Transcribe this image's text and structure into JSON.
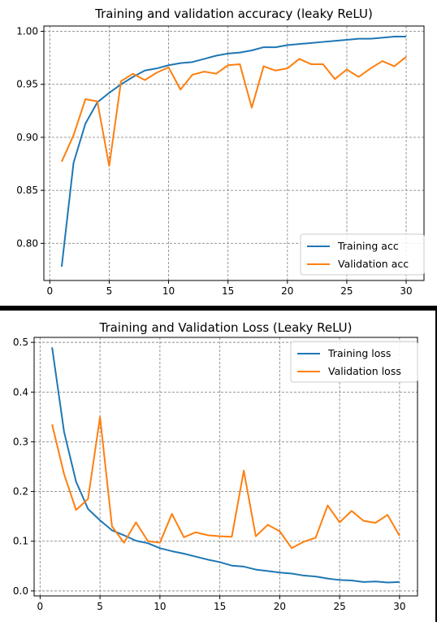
{
  "chart_data": [
    {
      "type": "line",
      "title": "Training and validation accuracy (leaky ReLU)",
      "xlabel": "",
      "ylabel": "",
      "xlim": [
        -0.5,
        31.5
      ],
      "ylim": [
        0.765,
        1.005
      ],
      "x_ticks": [
        0,
        5,
        10,
        15,
        20,
        25,
        30
      ],
      "y_ticks": [
        0.8,
        0.85,
        0.9,
        0.95,
        1.0
      ],
      "y_tick_labels": [
        "0.80",
        "0.85",
        "0.90",
        "0.95",
        "1.00"
      ],
      "grid": true,
      "legend_location": "lower right",
      "x": [
        1,
        2,
        3,
        4,
        5,
        6,
        7,
        8,
        9,
        10,
        11,
        12,
        13,
        14,
        15,
        16,
        17,
        18,
        19,
        20,
        21,
        22,
        23,
        24,
        25,
        26,
        27,
        28,
        29,
        30
      ],
      "series": [
        {
          "name": "Training acc",
          "color": "#1f77b4",
          "values": [
            0.778,
            0.876,
            0.913,
            0.933,
            0.942,
            0.95,
            0.957,
            0.963,
            0.965,
            0.968,
            0.97,
            0.971,
            0.974,
            0.977,
            0.979,
            0.98,
            0.982,
            0.985,
            0.985,
            0.987,
            0.988,
            0.989,
            0.99,
            0.991,
            0.992,
            0.993,
            0.993,
            0.994,
            0.995,
            0.995
          ]
        },
        {
          "name": "Validation acc",
          "color": "#ff7f0e",
          "values": [
            0.877,
            0.902,
            0.936,
            0.934,
            0.873,
            0.953,
            0.96,
            0.954,
            0.961,
            0.966,
            0.945,
            0.959,
            0.962,
            0.96,
            0.968,
            0.969,
            0.928,
            0.967,
            0.963,
            0.965,
            0.974,
            0.969,
            0.969,
            0.955,
            0.964,
            0.957,
            0.965,
            0.972,
            0.967,
            0.976
          ]
        }
      ]
    },
    {
      "type": "line",
      "title": "Training and Validation Loss (Leaky ReLU)",
      "xlabel": "",
      "ylabel": "",
      "xlim": [
        -0.5,
        31.5
      ],
      "ylim": [
        -0.01,
        0.51
      ],
      "x_ticks": [
        0,
        5,
        10,
        15,
        20,
        25,
        30
      ],
      "y_ticks": [
        0.0,
        0.1,
        0.2,
        0.3,
        0.4,
        0.5
      ],
      "y_tick_labels": [
        "0.0",
        "0.1",
        "0.2",
        "0.3",
        "0.4",
        "0.5"
      ],
      "grid": true,
      "legend_location": "upper right",
      "x": [
        1,
        2,
        3,
        4,
        5,
        6,
        7,
        8,
        9,
        10,
        11,
        12,
        13,
        14,
        15,
        16,
        17,
        18,
        19,
        20,
        21,
        22,
        23,
        24,
        25,
        26,
        27,
        28,
        29,
        30
      ],
      "series": [
        {
          "name": "Training loss",
          "color": "#1f77b4",
          "values": [
            0.49,
            0.32,
            0.22,
            0.165,
            0.142,
            0.122,
            0.112,
            0.101,
            0.096,
            0.086,
            0.08,
            0.075,
            0.069,
            0.063,
            0.058,
            0.051,
            0.049,
            0.043,
            0.04,
            0.037,
            0.035,
            0.031,
            0.029,
            0.025,
            0.022,
            0.021,
            0.018,
            0.019,
            0.017,
            0.018
          ]
        },
        {
          "name": "Validation loss",
          "color": "#ff7f0e",
          "values": [
            0.335,
            0.235,
            0.163,
            0.185,
            0.35,
            0.13,
            0.097,
            0.138,
            0.1,
            0.097,
            0.155,
            0.108,
            0.118,
            0.112,
            0.11,
            0.109,
            0.242,
            0.11,
            0.133,
            0.12,
            0.086,
            0.099,
            0.107,
            0.172,
            0.138,
            0.161,
            0.141,
            0.137,
            0.153,
            0.111
          ]
        }
      ]
    }
  ]
}
